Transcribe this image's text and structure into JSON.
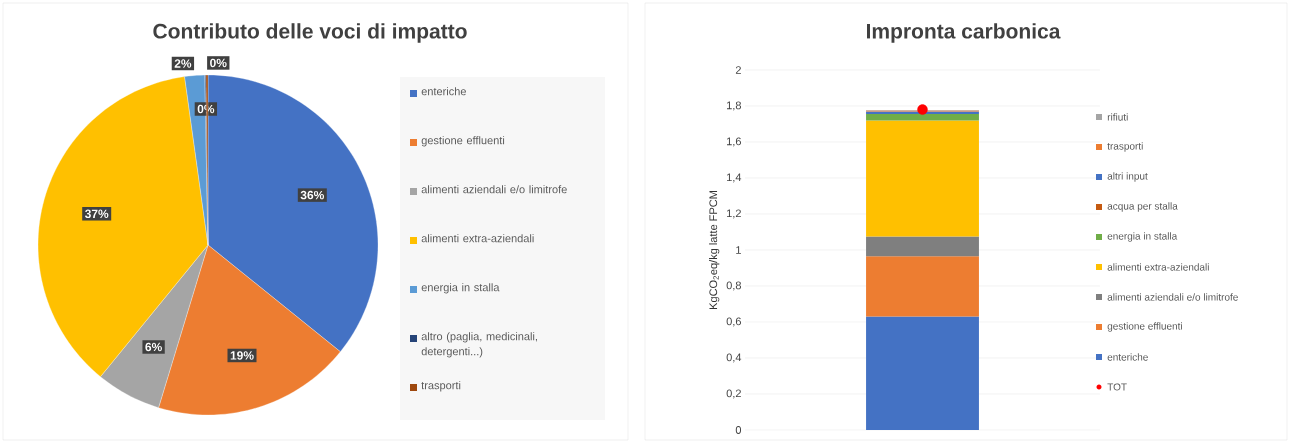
{
  "chart_data": [
    {
      "type": "pie",
      "title": "Contributo delle voci di impatto",
      "categories": [
        "enteriche",
        "gestione effluenti",
        "alimenti aziendali e/o limitrofe",
        "alimenti extra-aziendali",
        "energia in stalla",
        "altro (paglia, medicinali, detergenti...)",
        "trasporti"
      ],
      "values": [
        35.8,
        18.9,
        6.2,
        36.9,
        1.9,
        0.1,
        0.2
      ],
      "value_labels": [
        "36%",
        "19%",
        "6%",
        "37%",
        "2%",
        "0%",
        "0%"
      ],
      "colors": [
        "#4472c4",
        "#ed7d31",
        "#a5a5a5",
        "#ffc000",
        "#5b9bd5",
        "#264478",
        "#9e480e"
      ],
      "legend": "right"
    },
    {
      "type": "bar",
      "title": "Impronta carbonica",
      "ylabel": "KgCO$_{2}$eq/kg latte FPCM",
      "categories": [
        null
      ],
      "stacked": true,
      "grid": "y",
      "legend": "right",
      "ylim": [
        0,
        2
      ],
      "yticks": [
        0,
        {
          "value": 0.2,
          "label": "0,2"
        },
        {
          "value": 0.4,
          "label": "0,4"
        },
        {
          "value": 0.6,
          "label": "0,6"
        },
        {
          "value": 0.8,
          "label": "0,8"
        },
        1,
        {
          "value": 1.2,
          "label": "1,2"
        },
        {
          "value": 1.4,
          "label": "1,4"
        },
        {
          "value": 1.6,
          "label": "1,6"
        },
        {
          "value": 1.8,
          "label": "1,8"
        },
        2
      ],
      "series": [
        {
          "name": "enteriche",
          "color": "#4472c4",
          "values": [
            0.63
          ]
        },
        {
          "name": "gestione effluenti",
          "color": "#ed7d31",
          "values": [
            0.335
          ]
        },
        {
          "name": "alimenti aziendali e/o limitrofe",
          "color": "#7f7f7f",
          "values": [
            0.11
          ]
        },
        {
          "name": "alimenti extra-aziendali",
          "color": "#ffc000",
          "values": [
            0.645
          ]
        },
        {
          "name": "energia in stalla",
          "color": "#70ad47",
          "values": [
            0.035
          ]
        },
        {
          "name": "acqua per stalla",
          "color": "#c55a11",
          "values": [
            null
          ]
        },
        {
          "name": "altri input",
          "color": "#4472c4",
          "values": [
            0.015
          ]
        },
        {
          "name": "trasporti",
          "color": "#ed7d31",
          "values": [
            0.005
          ]
        },
        {
          "name": "rifiuti",
          "color": "#a5a5a5",
          "values": [
            0.003
          ]
        },
        {
          "name": "TOT",
          "type": "scatter",
          "marker": "circle",
          "color": "#ff0000",
          "values": [
            1.78
          ]
        }
      ]
    }
  ]
}
